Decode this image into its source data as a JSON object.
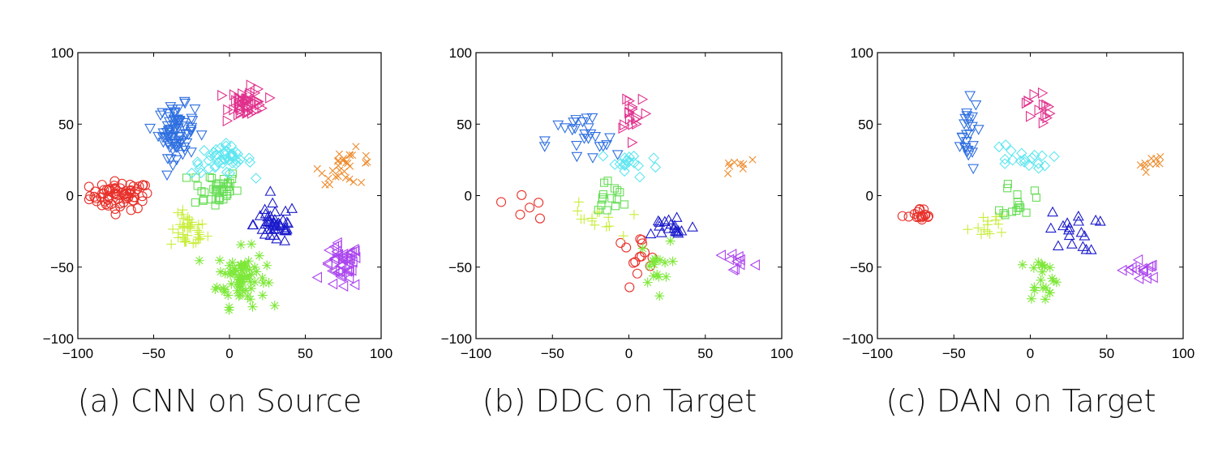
{
  "colors": {
    "red": "#e8302a",
    "yellowgreen": "#c8ee3a",
    "green": "#66dd55",
    "lime": "#7ee83a",
    "blue": "#2e6fe0",
    "cyan": "#5ee6f0",
    "navy": "#1a1acc",
    "purple": "#aa44ee",
    "magenta": "#e0308c",
    "orange": "#ee8a2a"
  },
  "chart_data": [
    {
      "type": "scatter",
      "caption": "(a) CNN on Source",
      "xlim": [
        -100,
        100
      ],
      "ylim": [
        -100,
        100
      ],
      "xticks": [
        "−100",
        "−50",
        "0",
        "50",
        "100"
      ],
      "yticks": [
        "100",
        "50",
        "0",
        "−50",
        "−100"
      ],
      "clusters": [
        {
          "marker": "circle",
          "color": "red",
          "cx": -72,
          "cy": 0,
          "sx": 10,
          "sy": 5,
          "n": 70
        },
        {
          "marker": "plus",
          "color": "yellowgreen",
          "cx": -27,
          "cy": -25,
          "sx": 6,
          "sy": 6,
          "n": 40
        },
        {
          "marker": "square",
          "color": "green",
          "cx": -10,
          "cy": 5,
          "sx": 8,
          "sy": 7,
          "n": 40
        },
        {
          "marker": "asterisk",
          "color": "lime",
          "cx": 8,
          "cy": -57,
          "sx": 8,
          "sy": 10,
          "n": 70
        },
        {
          "marker": "triangle-down",
          "color": "blue",
          "cx": -35,
          "cy": 45,
          "sx": 6,
          "sy": 9,
          "n": 80
        },
        {
          "marker": "diamond",
          "color": "cyan",
          "cx": -5,
          "cy": 25,
          "sx": 10,
          "sy": 5,
          "n": 45
        },
        {
          "marker": "triangle-up",
          "color": "navy",
          "cx": 30,
          "cy": -20,
          "sx": 7,
          "sy": 7,
          "n": 45
        },
        {
          "marker": "triangle-left",
          "color": "purple",
          "cx": 74,
          "cy": -50,
          "sx": 6,
          "sy": 8,
          "n": 45
        },
        {
          "marker": "triangle-right",
          "color": "magenta",
          "cx": 12,
          "cy": 65,
          "sx": 6,
          "sy": 5,
          "n": 45
        },
        {
          "marker": "cross",
          "color": "orange",
          "cx": 78,
          "cy": 20,
          "sx": 9,
          "sy": 6,
          "n": 30
        }
      ]
    },
    {
      "type": "scatter",
      "caption": "(b) DDC on Target",
      "xlim": [
        -100,
        100
      ],
      "ylim": [
        -100,
        100
      ],
      "xticks": [
        "−100",
        "−50",
        "0",
        "50",
        "100"
      ],
      "yticks": [
        "100",
        "50",
        "0",
        "−50",
        "−100"
      ],
      "clusters": [
        {
          "marker": "circle",
          "color": "red",
          "cx": 5,
          "cy": -40,
          "sx": 8,
          "sy": 6,
          "n": 14
        },
        {
          "marker": "circle",
          "color": "red",
          "cx": -65,
          "cy": -5,
          "sx": 8,
          "sy": 6,
          "n": 6
        },
        {
          "marker": "plus",
          "color": "yellowgreen",
          "cx": -25,
          "cy": -18,
          "sx": 9,
          "sy": 6,
          "n": 14
        },
        {
          "marker": "square",
          "color": "green",
          "cx": -13,
          "cy": 0,
          "sx": 6,
          "sy": 6,
          "n": 15
        },
        {
          "marker": "asterisk",
          "color": "lime",
          "cx": 17,
          "cy": -50,
          "sx": 5,
          "sy": 9,
          "n": 16
        },
        {
          "marker": "triangle-down",
          "color": "blue",
          "cx": -30,
          "cy": 38,
          "sx": 12,
          "sy": 10,
          "n": 25
        },
        {
          "marker": "diamond",
          "color": "cyan",
          "cx": 0,
          "cy": 22,
          "sx": 10,
          "sy": 5,
          "n": 18
        },
        {
          "marker": "triangle-up",
          "color": "navy",
          "cx": 28,
          "cy": -22,
          "sx": 8,
          "sy": 5,
          "n": 18
        },
        {
          "marker": "triangle-left",
          "color": "purple",
          "cx": 70,
          "cy": -46,
          "sx": 6,
          "sy": 4,
          "n": 10
        },
        {
          "marker": "triangle-right",
          "color": "magenta",
          "cx": 3,
          "cy": 60,
          "sx": 5,
          "sy": 8,
          "n": 16
        },
        {
          "marker": "cross",
          "color": "orange",
          "cx": 72,
          "cy": 22,
          "sx": 6,
          "sy": 4,
          "n": 8
        }
      ]
    },
    {
      "type": "scatter",
      "caption": "(c) DAN on Target",
      "xlim": [
        -100,
        100
      ],
      "ylim": [
        -100,
        100
      ],
      "xticks": [
        "−100",
        "−50",
        "0",
        "50",
        "100"
      ],
      "yticks": [
        "100",
        "50",
        "0",
        "−50",
        "−100"
      ],
      "clusters": [
        {
          "marker": "circle",
          "color": "red",
          "cx": -72,
          "cy": -15,
          "sx": 4,
          "sy": 3,
          "n": 18
        },
        {
          "marker": "plus",
          "color": "yellowgreen",
          "cx": -28,
          "cy": -20,
          "sx": 6,
          "sy": 6,
          "n": 14
        },
        {
          "marker": "square",
          "color": "green",
          "cx": -8,
          "cy": -2,
          "sx": 5,
          "sy": 7,
          "n": 15
        },
        {
          "marker": "asterisk",
          "color": "lime",
          "cx": 8,
          "cy": -57,
          "sx": 5,
          "sy": 8,
          "n": 20
        },
        {
          "marker": "triangle-down",
          "color": "blue",
          "cx": -42,
          "cy": 42,
          "sx": 4,
          "sy": 12,
          "n": 25
        },
        {
          "marker": "diamond",
          "color": "cyan",
          "cx": -8,
          "cy": 25,
          "sx": 10,
          "sy": 6,
          "n": 18
        },
        {
          "marker": "triangle-up",
          "color": "navy",
          "cx": 28,
          "cy": -25,
          "sx": 8,
          "sy": 7,
          "n": 18
        },
        {
          "marker": "triangle-left",
          "color": "purple",
          "cx": 72,
          "cy": -52,
          "sx": 6,
          "sy": 4,
          "n": 14
        },
        {
          "marker": "triangle-right",
          "color": "magenta",
          "cx": 5,
          "cy": 62,
          "sx": 4,
          "sy": 7,
          "n": 14
        },
        {
          "marker": "cross",
          "color": "orange",
          "cx": 78,
          "cy": 23,
          "sx": 5,
          "sy": 3,
          "n": 10
        }
      ]
    }
  ]
}
